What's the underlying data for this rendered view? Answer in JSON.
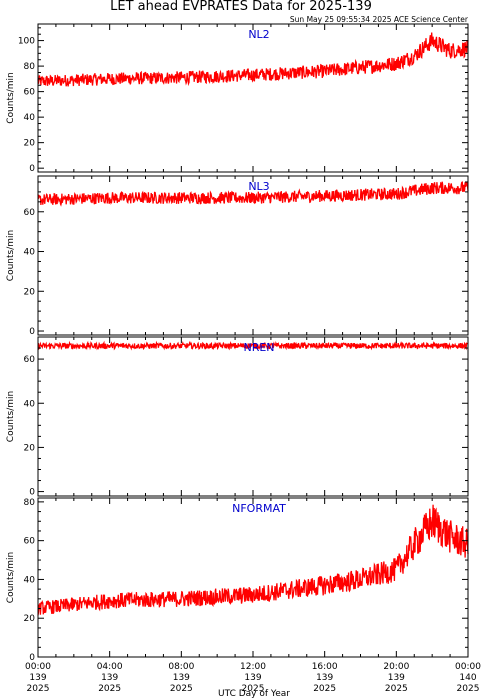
{
  "title": "LET ahead EVPRATES Data for 2025-139",
  "timestamp": "Sun May 25 09:55:34 2025 ACE Science Center",
  "xlabel": "UTC Day of Year",
  "x_ticks": [
    {
      "time": "00:00",
      "doy": "139",
      "year": "2025"
    },
    {
      "time": "04:00",
      "doy": "139",
      "year": "2025"
    },
    {
      "time": "08:00",
      "doy": "139",
      "year": "2025"
    },
    {
      "time": "12:00",
      "doy": "139",
      "year": "2025"
    },
    {
      "time": "16:00",
      "doy": "139",
      "year": "2025"
    },
    {
      "time": "20:00",
      "doy": "139",
      "year": "2025"
    },
    {
      "time": "00:00",
      "doy": "140",
      "year": "2025"
    }
  ],
  "colors": {
    "line": "#ff0000",
    "panel_label": "#0000cc",
    "axis": "#000000"
  },
  "chart_data": [
    {
      "type": "line",
      "title": "NL2",
      "ylabel": "Counts/min",
      "ylim": [
        -3,
        113
      ],
      "yticks": [
        0,
        20,
        40,
        60,
        80,
        100
      ],
      "xlim": [
        0,
        24
      ],
      "x_unit": "hours UTC",
      "series": [
        {
          "x": [
            0,
            4,
            8,
            12,
            16,
            20,
            21,
            22,
            23,
            24
          ],
          "values": [
            68,
            70,
            71,
            73,
            76,
            82,
            88,
            100,
            92,
            94
          ]
        }
      ]
    },
    {
      "type": "line",
      "title": "NL3",
      "ylabel": "Counts/min",
      "ylim": [
        -2,
        78
      ],
      "yticks": [
        0,
        20,
        40,
        60
      ],
      "xlim": [
        0,
        24
      ],
      "x_unit": "hours UTC",
      "series": [
        {
          "x": [
            0,
            4,
            8,
            12,
            16,
            20,
            22,
            24
          ],
          "values": [
            66,
            67,
            67,
            67,
            68,
            69,
            72,
            72
          ]
        }
      ]
    },
    {
      "type": "line",
      "title": "NREN",
      "ylabel": "Counts/min",
      "ylim": [
        -2,
        70
      ],
      "yticks": [
        0,
        20,
        40,
        60
      ],
      "xlim": [
        0,
        24
      ],
      "x_unit": "hours UTC",
      "series": [
        {
          "x": [
            0,
            6,
            12,
            18,
            24
          ],
          "values": [
            66,
            66,
            66,
            66,
            66
          ]
        }
      ]
    },
    {
      "type": "line",
      "title": "NFORMAT",
      "ylabel": "Counts/min",
      "ylim": [
        0,
        82
      ],
      "yticks": [
        0,
        20,
        40,
        60,
        80
      ],
      "xlim": [
        0,
        24
      ],
      "x_unit": "hours UTC",
      "series": [
        {
          "x": [
            0,
            2,
            4,
            8,
            12,
            16,
            18,
            20,
            21,
            22,
            23,
            24
          ],
          "values": [
            25,
            27,
            29,
            30,
            32,
            37,
            40,
            45,
            58,
            70,
            62,
            58
          ]
        }
      ]
    }
  ]
}
